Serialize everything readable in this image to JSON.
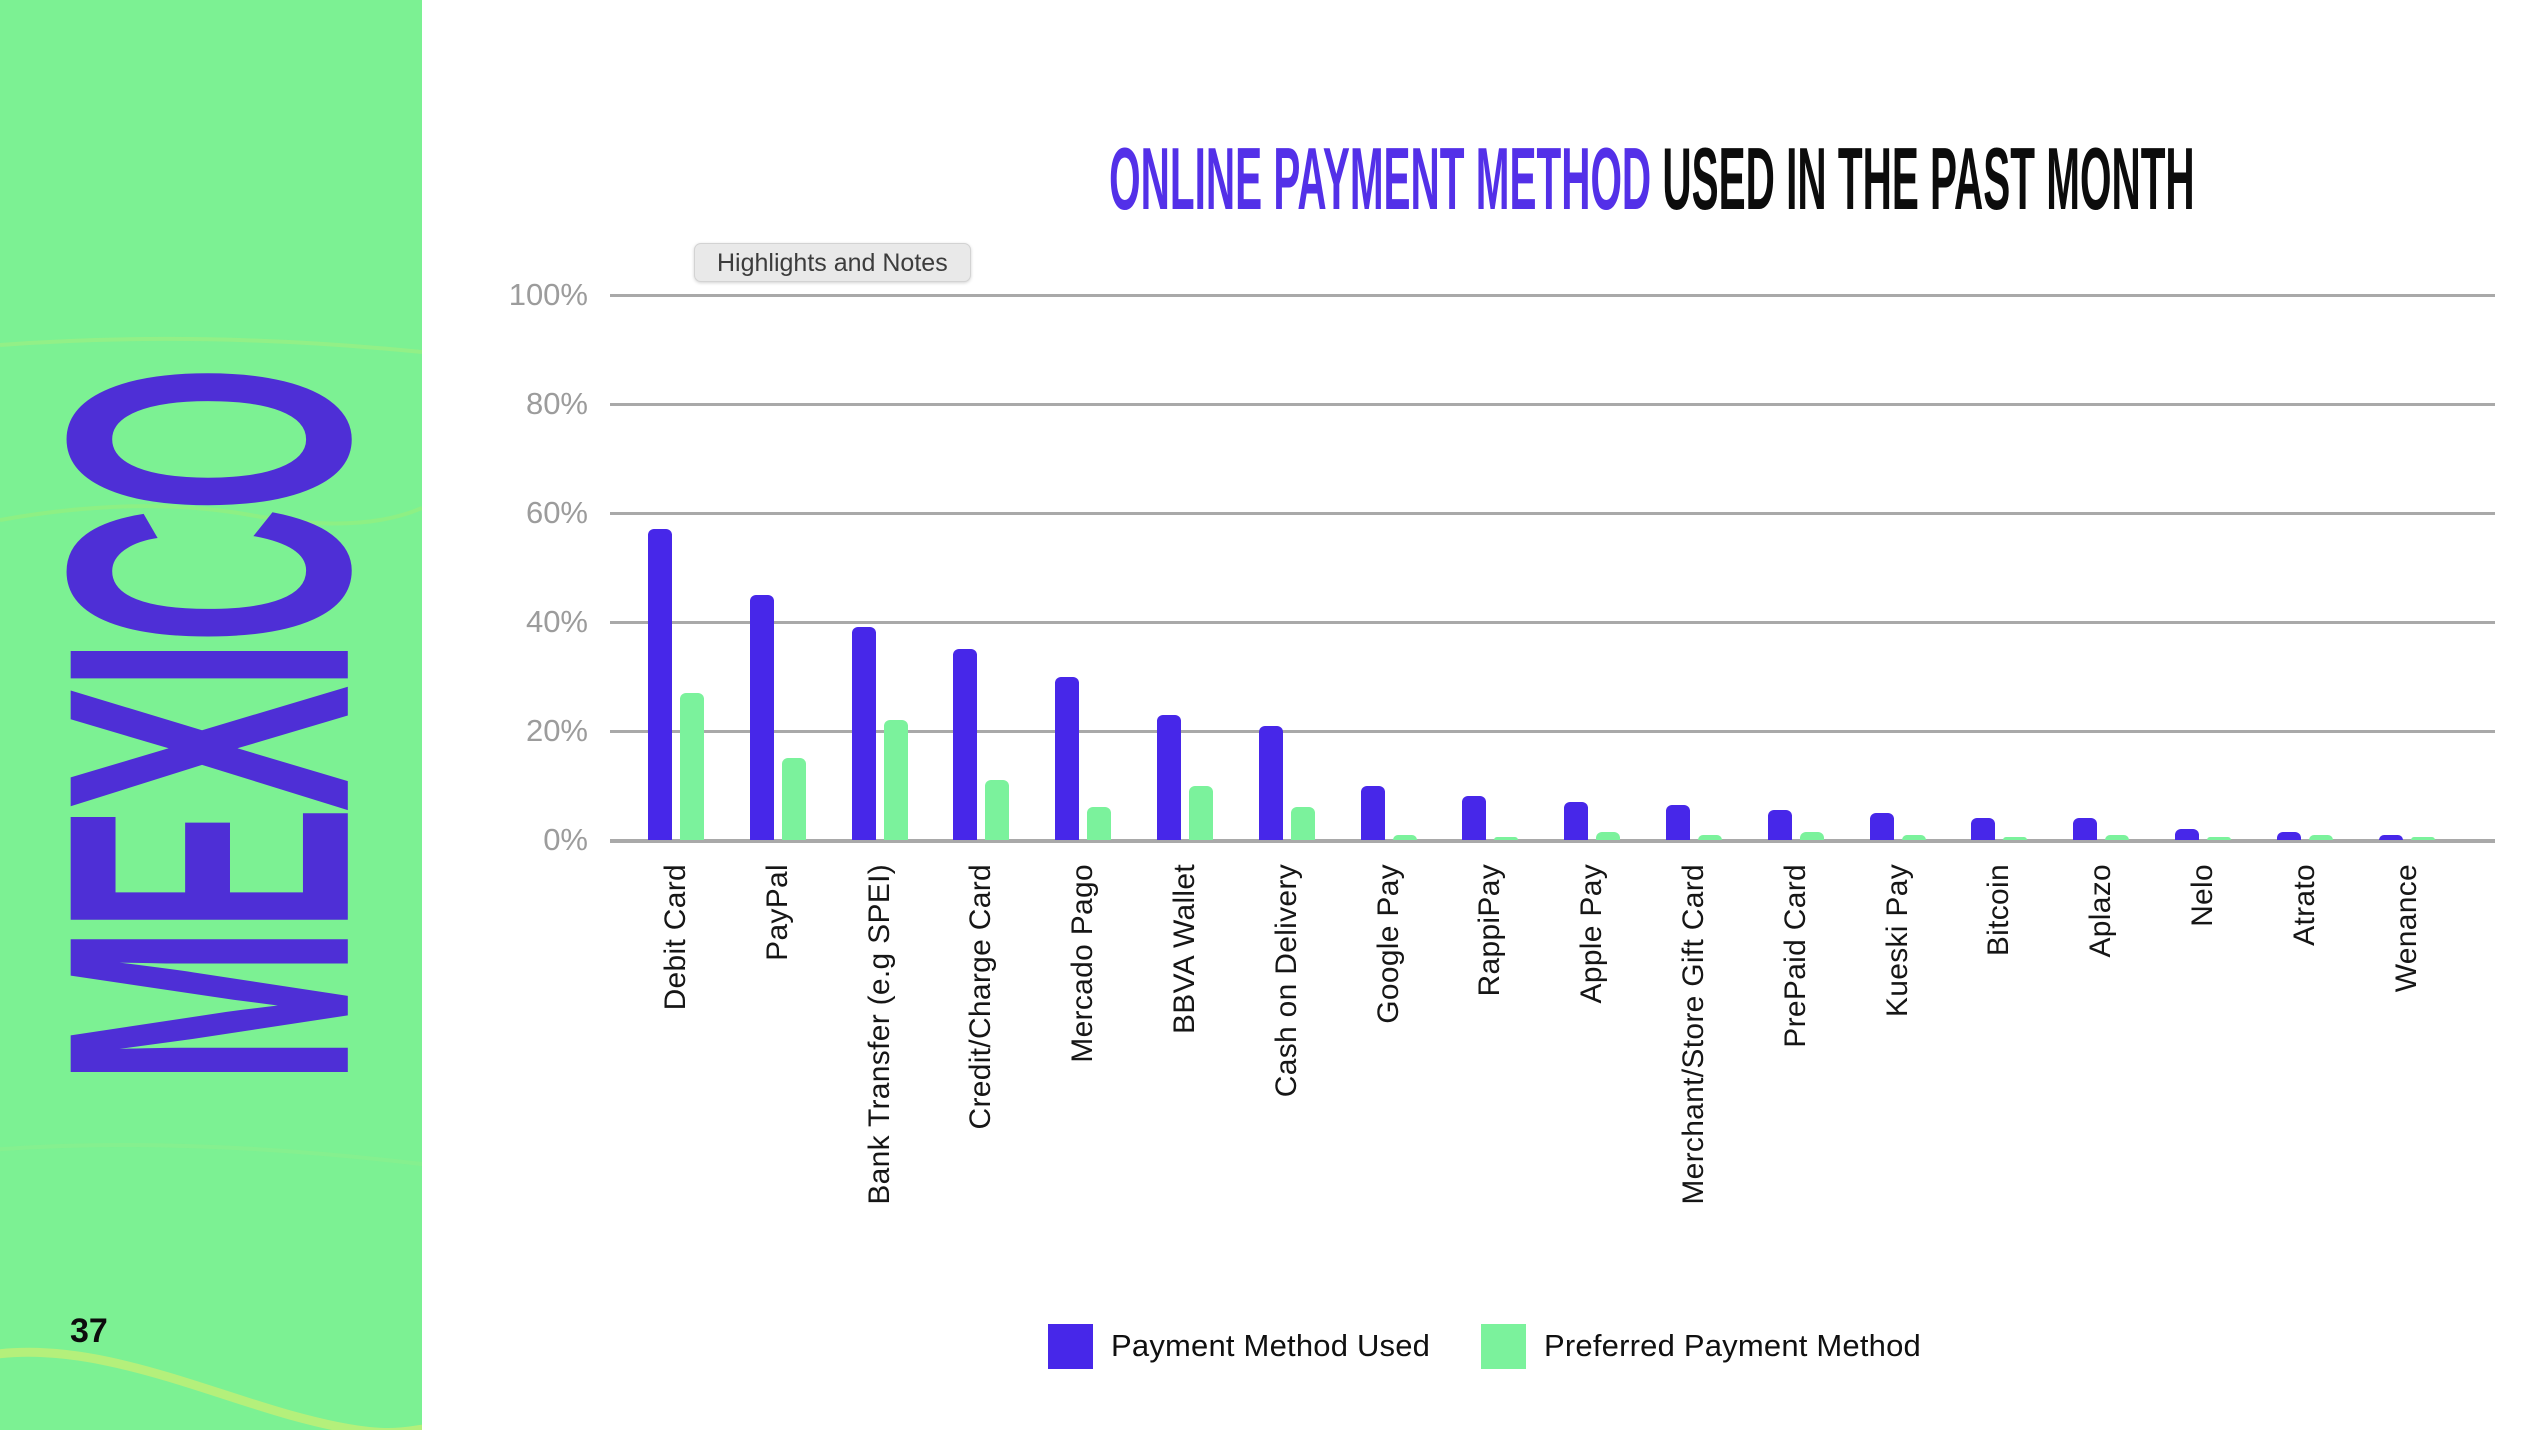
{
  "sidebar": {
    "country": "MEXICO",
    "page_number": "37",
    "bg_color": "#7CF193",
    "country_color": "#4E2FD6"
  },
  "header": {
    "title_highlight": "ONLINE PAYMENT METHOD",
    "title_rest": " USED IN THE PAST MONTH",
    "highlight_color": "#5330E8"
  },
  "note_chip": {
    "label": "Highlights and Notes"
  },
  "chart_data": {
    "type": "bar",
    "title": "Online Payment Method Used in the Past Month",
    "categories": [
      "Debit Card",
      "PayPal",
      "Bank Transfer (e.g SPEI)",
      "Credit/Charge Card",
      "Mercado Pago",
      "BBVA Wallet",
      "Cash on Delivery",
      "Google Pay",
      "RappiPay",
      "Apple Pay",
      "Merchant/Store Gift Card",
      "PrePaid Card",
      "Kueski Pay",
      "Bitcoin",
      "Aplazo",
      "Nelo",
      "Atrato",
      "Wenance"
    ],
    "series": [
      {
        "name": "Payment Method Used",
        "color": "#4727E9",
        "values": [
          57,
          45,
          39,
          35,
          30,
          23,
          21,
          10,
          8,
          7,
          6.5,
          5.5,
          5,
          4,
          4,
          2,
          1.5,
          1
        ]
      },
      {
        "name": "Preferred Payment Method",
        "color": "#7BF29C",
        "values": [
          27,
          15,
          22,
          11,
          6,
          10,
          6,
          1,
          0.5,
          1.5,
          1,
          1.5,
          1,
          0.5,
          1,
          0.5,
          1,
          0.5
        ]
      }
    ],
    "y_ticks": [
      "100%",
      "80%",
      "60%",
      "40%",
      "20%",
      "0%"
    ],
    "ylim": [
      0,
      100
    ],
    "grid": true,
    "grid_color": "#A9A9A9",
    "tick_text_color": "#9C9C9C",
    "legend_position": "bottom"
  }
}
